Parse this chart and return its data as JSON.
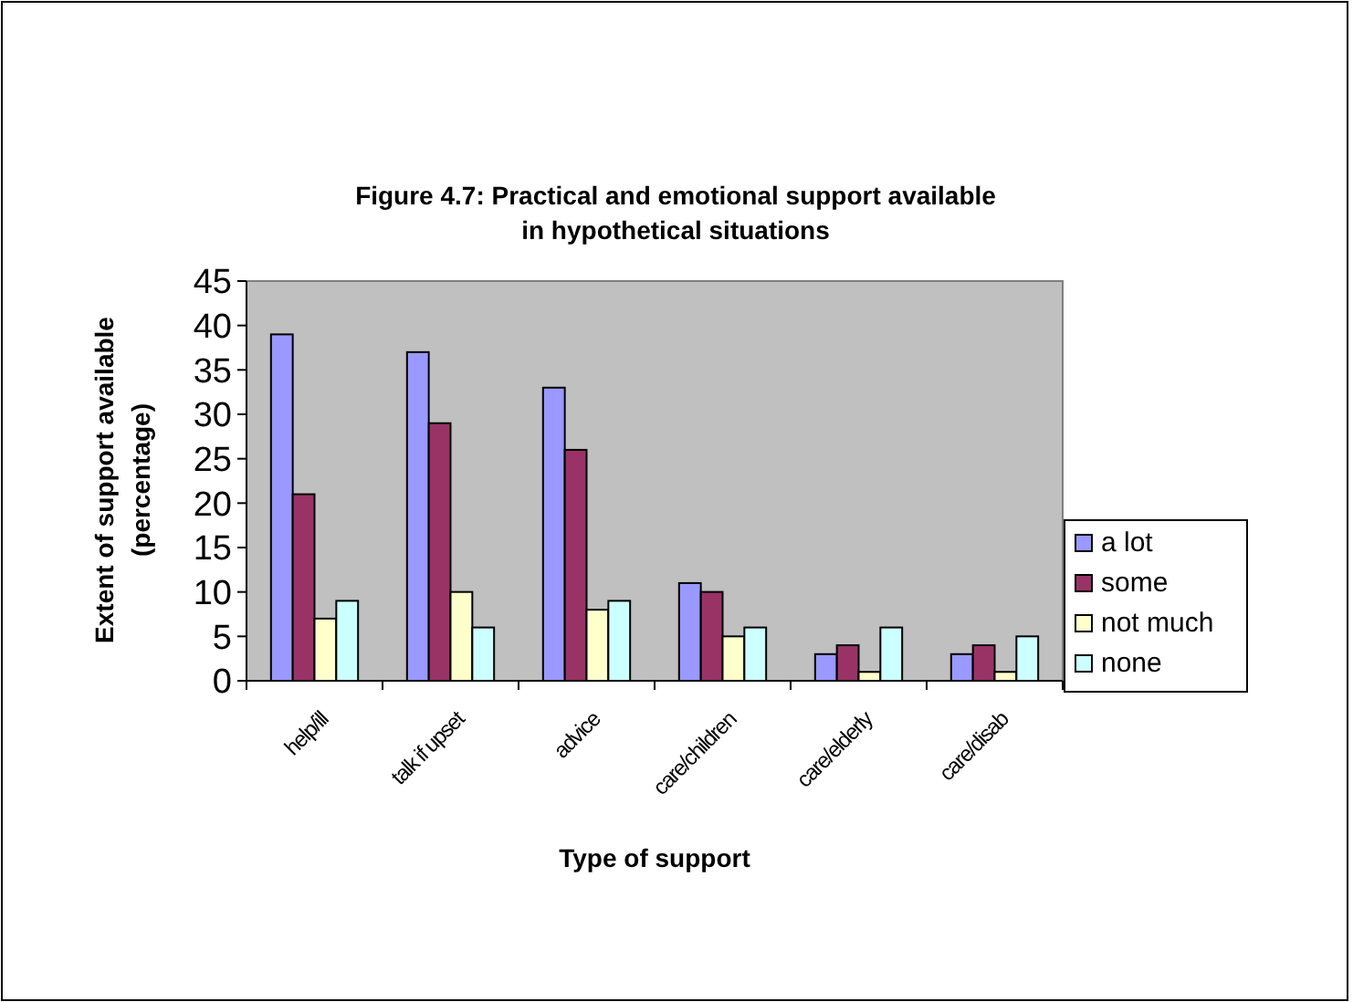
{
  "chart_data": {
    "type": "bar",
    "title": "Figure 4.7: Practical and emotional support available in hypothetical situations",
    "xlabel": "Type of support",
    "ylabel": "Extent of support available (percentage)",
    "categories": [
      "help/ill",
      "talk if upset",
      "advice",
      "care/children",
      "care/elderly",
      "care/disab"
    ],
    "series": [
      {
        "name": "a lot",
        "color": "#9999ff",
        "values": [
          39,
          37,
          33,
          11,
          3,
          3
        ]
      },
      {
        "name": "some",
        "color": "#993366",
        "values": [
          21,
          29,
          26,
          10,
          4,
          4
        ]
      },
      {
        "name": "not much",
        "color": "#ffffcc",
        "values": [
          7,
          10,
          8,
          5,
          1,
          1
        ]
      },
      {
        "name": "none",
        "color": "#ccffff",
        "values": [
          9,
          6,
          9,
          6,
          6,
          5
        ]
      }
    ],
    "ylim": [
      0,
      45
    ],
    "yticks": [
      0,
      5,
      10,
      15,
      20,
      25,
      30,
      35,
      40,
      45
    ],
    "grid": false,
    "legend": "right"
  }
}
